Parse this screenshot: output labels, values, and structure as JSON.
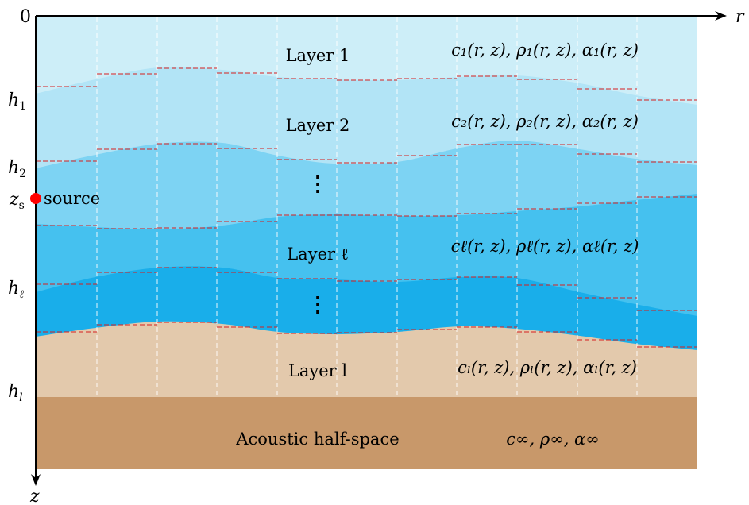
{
  "axes": {
    "origin_label": "0",
    "r_label": "r",
    "z_label": "z",
    "depth_labels": {
      "h1": {
        "base": "h",
        "sub": "1"
      },
      "h2": {
        "base": "h",
        "sub": "2"
      },
      "hl_script": {
        "base": "h",
        "sub": "ℓ"
      },
      "hl": {
        "base": "h",
        "sub": "l"
      }
    }
  },
  "source": {
    "depth_label": {
      "base": "z",
      "sub": "s"
    },
    "label": "source",
    "color": "#ff0000"
  },
  "layers": [
    {
      "label": "Layer 1",
      "params": "c₁(r, z), ρ₁(r, z), α₁(r, z)",
      "color": "#cdeef8"
    },
    {
      "label": "Layer 2",
      "params": "c₂(r, z), ρ₂(r, z), α₂(r, z)",
      "color": "#b2e4f6"
    },
    {
      "label": "Layer ℓ",
      "params": "cℓ(r, z), ρℓ(r, z), αℓ(r, z)",
      "color": "#45c1ef"
    },
    {
      "label": "Layer l",
      "params": "cₗ(r, z), ρₗ(r, z), αₗ(r, z)",
      "color": "#e3c9ac"
    }
  ],
  "bands": {
    "band_2": "#7dd3f3",
    "band_l": "#19aeea"
  },
  "half_space": {
    "label": "Acoustic half-space",
    "params": "c∞, ρ∞, α∞",
    "color": "#c8986a"
  },
  "ellipsis": [
    "⋮",
    "⋮"
  ],
  "grid_color": "#ffffff",
  "staircase_color": "#d61f1f"
}
